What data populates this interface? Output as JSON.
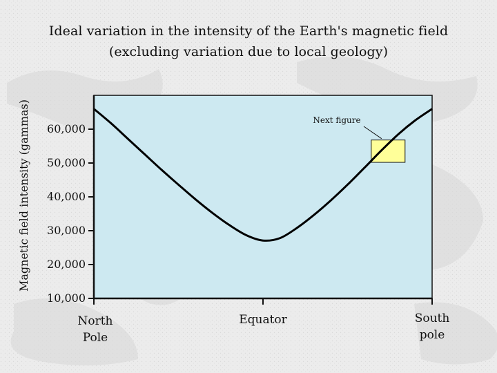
{
  "chart_data": {
    "type": "line",
    "title_line1": "Ideal variation in the intensity of the Earth's magnetic field",
    "title_line2": "(excluding variation due to local geology)",
    "ylabel": "Magnetic field intensity (gammas)",
    "xlabel": "",
    "ylim": [
      10000,
      70000
    ],
    "y_ticks": [
      {
        "value": 10000,
        "label": "10,000"
      },
      {
        "value": 20000,
        "label": "20,000"
      },
      {
        "value": 30000,
        "label": "30,000"
      },
      {
        "value": 40000,
        "label": "40,000"
      },
      {
        "value": 50000,
        "label": "50,000"
      },
      {
        "value": 60000,
        "label": "60,000"
      }
    ],
    "x_categories": [
      {
        "key": "north",
        "lines": [
          "North",
          "Pole"
        ]
      },
      {
        "key": "equator",
        "lines": [
          "Equator"
        ]
      },
      {
        "key": "south",
        "lines": [
          "South",
          "pole"
        ]
      }
    ],
    "grid": false,
    "series": [
      {
        "color": "#000000",
        "x": [
          0,
          0.05,
          0.1,
          0.15,
          0.2,
          0.25,
          0.3,
          0.35,
          0.4,
          0.45,
          0.5,
          0.55,
          0.6,
          0.65,
          0.7,
          0.75,
          0.8,
          0.85,
          0.9,
          0.95,
          1.0
        ],
        "y": [
          66000,
          61800,
          57200,
          52600,
          48000,
          43600,
          39300,
          35300,
          31700,
          28700,
          27100,
          27800,
          30800,
          34600,
          38900,
          43600,
          48600,
          53700,
          58500,
          62600,
          66000
        ]
      }
    ],
    "annotation": {
      "label": "Next figure",
      "box_x": [
        0.82,
        0.92
      ],
      "box_y": [
        50200,
        56800
      ]
    },
    "colors": {
      "plot_background": "#cde9f1",
      "annotation_box": "#ffff99",
      "page_background": "#eeeeee"
    }
  }
}
